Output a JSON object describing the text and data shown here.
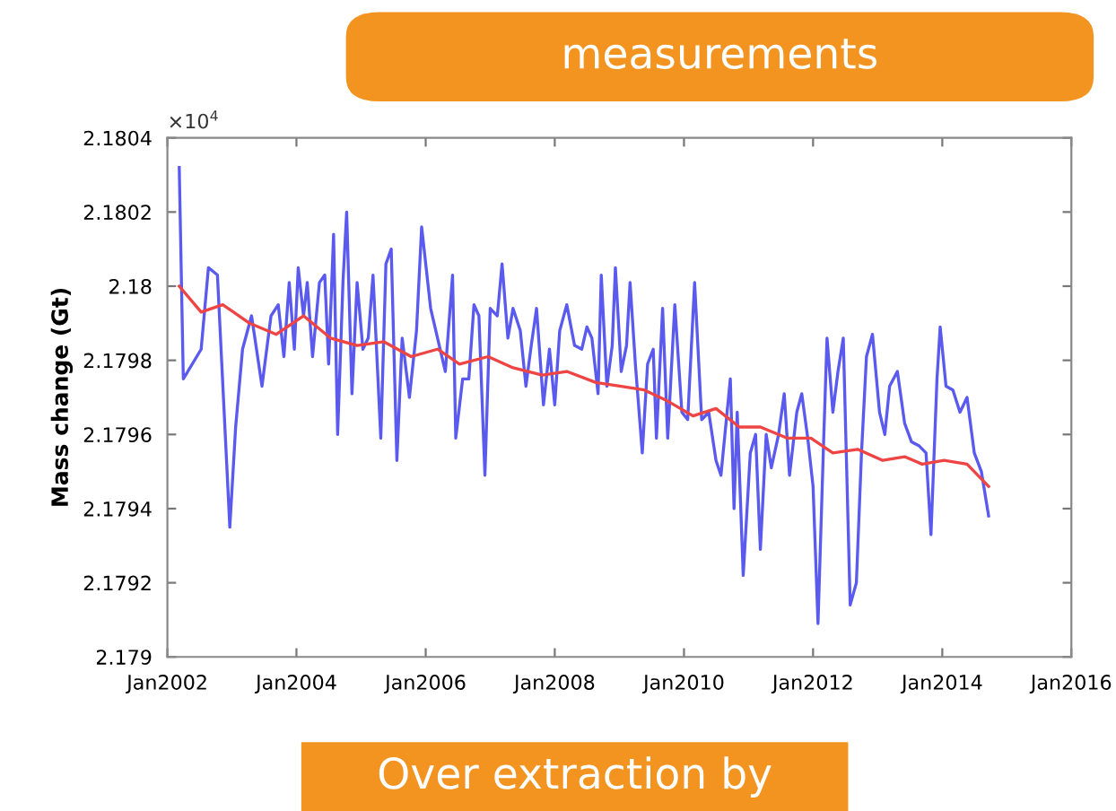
{
  "chart_data": {
    "type": "line",
    "ylabel": "Mass change (Gt)",
    "annotations": [
      "×10$^{4}$",
      "measurements",
      "Over extraction by"
    ],
    "xlim": [
      "2002-01",
      "2016-01"
    ],
    "xticks": [
      {
        "value": "2002-01",
        "label": "Jan2002"
      },
      {
        "value": "2004-01",
        "label": "Jan2004"
      },
      {
        "value": "2006-01",
        "label": "Jan2006"
      },
      {
        "value": "2008-01",
        "label": "Jan2008"
      },
      {
        "value": "2010-01",
        "label": "Jan2010"
      },
      {
        "value": "2012-01",
        "label": "Jan2012"
      },
      {
        "value": "2014-01",
        "label": "Jan2014"
      },
      {
        "value": "2016-01",
        "label": "Jan2016"
      }
    ],
    "ylim": [
      2.179,
      2.1804
    ],
    "yticks": [
      2.179,
      2.1792,
      2.1794,
      2.1796,
      2.1798,
      2.18,
      2.1802,
      2.1804
    ],
    "grid": false,
    "legend": false,
    "marker": "none",
    "line_style": "solid",
    "series": [
      {
        "color": "#5a5aee",
        "x": [
          "2002-03-09",
          "2002-04-01",
          "2002-07-11",
          "2002-08-21",
          "2002-10-11",
          "2002-12-20",
          "2003-01-22",
          "2003-03-02",
          "2003-04-22",
          "2003-06-20",
          "2003-08-10",
          "2003-09-20",
          "2003-10-22",
          "2003-11-21",
          "2003-12-20",
          "2004-01-11",
          "2004-02-10",
          "2004-03-02",
          "2004-04-01",
          "2004-05-10",
          "2004-06-09",
          "2004-07-01",
          "2004-07-29",
          "2004-08-21",
          "2004-09-20",
          "2004-10-11",
          "2004-11-10",
          "2004-12-09",
          "2005-01-11",
          "2005-02-10",
          "2005-03-09",
          "2005-04-22",
          "2005-05-21",
          "2005-06-20",
          "2005-07-22",
          "2005-08-21",
          "2005-10-01",
          "2005-11-10",
          "2005-12-09",
          "2006-01-29",
          "2006-03-09",
          "2006-04-22",
          "2006-06-02",
          "2006-06-20",
          "2006-07-29",
          "2006-09-02",
          "2006-10-01",
          "2006-10-29",
          "2006-12-02",
          "2007-01-01",
          "2007-02-10",
          "2007-03-09",
          "2007-04-11",
          "2007-05-10",
          "2007-06-20",
          "2007-07-22",
          "2007-08-21",
          "2007-09-20",
          "2007-10-29",
          "2007-12-02",
          "2008-01-01",
          "2008-01-29",
          "2008-03-09",
          "2008-04-22",
          "2008-06-02",
          "2008-07-01",
          "2008-07-29",
          "2008-09-02",
          "2008-09-20",
          "2008-10-22",
          "2008-11-21",
          "2008-12-09",
          "2009-01-11",
          "2009-02-10",
          "2009-03-02",
          "2009-04-01",
          "2009-05-10",
          "2009-06-09",
          "2009-07-11",
          "2009-07-29",
          "2009-09-02",
          "2009-10-01",
          "2009-11-10",
          "2009-12-20",
          "2010-01-22",
          "2010-03-02",
          "2010-04-11",
          "2010-05-21",
          "2010-07-01",
          "2010-07-29",
          "2010-09-20",
          "2010-10-11",
          "2010-10-29",
          "2010-12-02",
          "2011-01-11",
          "2011-02-10",
          "2011-03-09",
          "2011-04-11",
          "2011-05-10",
          "2011-06-20",
          "2011-07-22",
          "2011-08-21",
          "2011-10-01",
          "2011-10-29",
          "2011-12-02",
          "2012-01-01",
          "2012-01-29",
          "2012-03-02",
          "2012-03-20",
          "2012-04-22",
          "2012-05-21",
          "2012-06-20",
          "2012-07-29",
          "2012-09-02",
          "2012-10-01",
          "2012-10-29",
          "2012-12-02",
          "2013-01-11",
          "2013-02-10",
          "2013-03-09",
          "2013-04-22",
          "2013-06-02",
          "2013-07-11",
          "2013-08-21",
          "2013-10-01",
          "2013-10-29",
          "2013-12-02",
          "2013-12-20",
          "2014-01-22",
          "2014-03-02",
          "2014-04-11",
          "2014-05-21",
          "2014-07-01",
          "2014-08-10",
          "2014-09-20"
        ],
        "values": [
          2.18032,
          2.17975,
          2.17983,
          2.18005,
          2.18003,
          2.17935,
          2.17962,
          2.17983,
          2.17992,
          2.17973,
          2.17992,
          2.17995,
          2.17981,
          2.18001,
          2.17983,
          2.18005,
          2.17992,
          2.18001,
          2.17981,
          2.18001,
          2.18003,
          2.17979,
          2.18014,
          2.1796,
          2.18001,
          2.1802,
          2.17971,
          2.18001,
          2.17983,
          2.17986,
          2.18003,
          2.17959,
          2.18006,
          2.1801,
          2.17953,
          2.17986,
          2.1797,
          2.17988,
          2.18016,
          2.17994,
          2.17986,
          2.17977,
          2.18003,
          2.17959,
          2.17975,
          2.17975,
          2.17995,
          2.17992,
          2.17949,
          2.17994,
          2.17992,
          2.18006,
          2.17986,
          2.17994,
          2.17988,
          2.17973,
          2.17984,
          2.17994,
          2.17968,
          2.17983,
          2.17968,
          2.17988,
          2.17995,
          2.17984,
          2.17983,
          2.17989,
          2.17986,
          2.17971,
          2.18003,
          2.17973,
          2.17984,
          2.18005,
          2.17977,
          2.17984,
          2.18001,
          2.17979,
          2.17955,
          2.17979,
          2.17983,
          2.17959,
          2.17994,
          2.17959,
          2.17995,
          2.17966,
          2.17964,
          2.18001,
          2.17964,
          2.17966,
          2.17953,
          2.17949,
          2.17975,
          2.1794,
          2.17966,
          2.17922,
          2.17955,
          2.1796,
          2.17929,
          2.1796,
          2.17951,
          2.1796,
          2.17971,
          2.17949,
          2.17966,
          2.17971,
          2.17959,
          2.17946,
          2.17909,
          2.1796,
          2.17986,
          2.17966,
          2.17977,
          2.17986,
          2.17914,
          2.1792,
          2.17955,
          2.17981,
          2.17987,
          2.17966,
          2.1796,
          2.17973,
          2.17977,
          2.17963,
          2.17958,
          2.17957,
          2.17955,
          2.17933,
          2.17975,
          2.17989,
          2.17973,
          2.17972,
          2.17966,
          2.1797,
          2.17955,
          2.1795,
          2.17938
        ]
      },
      {
        "color": "#ee4444",
        "x": [
          "2002-03-09",
          "2002-07-11",
          "2002-11-10",
          "2003-04-11",
          "2003-09-09",
          "2004-02-10",
          "2004-07-11",
          "2004-12-09",
          "2005-05-10",
          "2005-10-11",
          "2006-03-09",
          "2006-07-11",
          "2006-12-20",
          "2007-05-10",
          "2007-10-22",
          "2008-03-09",
          "2008-08-21",
          "2009-01-11",
          "2009-05-21",
          "2009-10-01",
          "2010-02-21",
          "2010-07-01",
          "2010-11-10",
          "2011-03-09",
          "2011-08-10",
          "2011-12-20",
          "2012-04-22",
          "2012-09-09",
          "2013-01-29",
          "2013-06-02",
          "2013-09-09",
          "2014-01-11",
          "2014-05-21",
          "2014-09-20"
        ],
        "values": [
          2.18,
          2.17993,
          2.17995,
          2.1799,
          2.17987,
          2.17992,
          2.17986,
          2.17984,
          2.17985,
          2.17981,
          2.17983,
          2.17979,
          2.17981,
          2.17978,
          2.17976,
          2.17977,
          2.17974,
          2.17973,
          2.17972,
          2.17969,
          2.17965,
          2.17967,
          2.17962,
          2.17962,
          2.17959,
          2.17959,
          2.17955,
          2.17956,
          2.17953,
          2.17954,
          2.17952,
          2.17953,
          2.17952,
          2.17946
        ]
      }
    ]
  }
}
